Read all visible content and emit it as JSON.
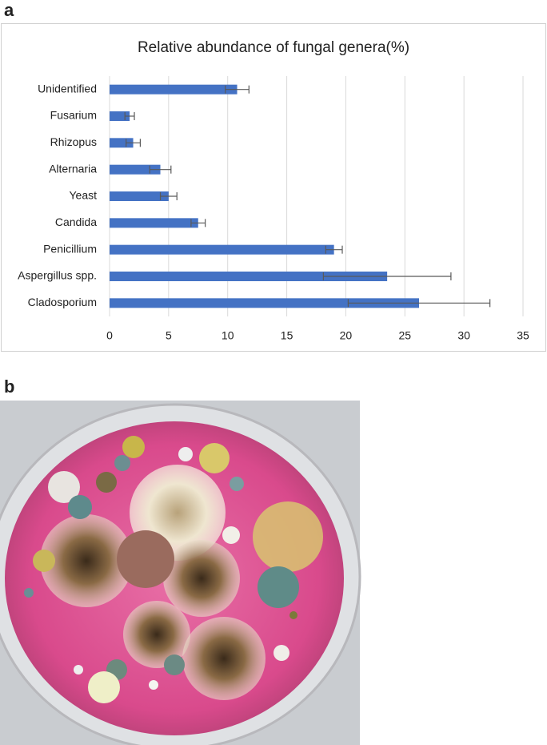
{
  "panel_labels": [
    "a",
    "b"
  ],
  "chart_data": {
    "type": "barh",
    "title": "Relative abundance of fungal genera(%)",
    "categories": [
      "Unidentified",
      "Fusarium",
      "Rhizopus",
      "Alternaria",
      "Yeast",
      "Candida",
      "Penicillium",
      "Aspergillus spp.",
      "Cladosporium"
    ],
    "values": [
      10.8,
      1.7,
      2.0,
      4.3,
      5.0,
      7.5,
      19.0,
      23.5,
      26.2
    ],
    "errors": [
      1.0,
      0.4,
      0.6,
      0.9,
      0.7,
      0.6,
      0.7,
      5.4,
      6.0
    ],
    "color": "#4472c4",
    "error_color": "#595959",
    "xlim": [
      0,
      35
    ],
    "xticks": [
      0,
      5,
      10,
      15,
      20,
      25,
      30,
      35
    ],
    "grid": true
  }
}
